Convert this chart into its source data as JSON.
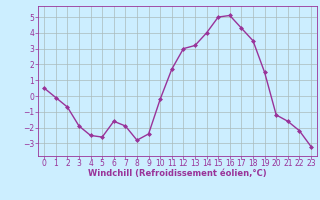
{
  "x": [
    0,
    1,
    2,
    3,
    4,
    5,
    6,
    7,
    8,
    9,
    10,
    11,
    12,
    13,
    14,
    15,
    16,
    17,
    18,
    19,
    20,
    21,
    22,
    23
  ],
  "y": [
    0.5,
    -0.1,
    -0.7,
    -1.9,
    -2.5,
    -2.6,
    -1.6,
    -1.9,
    -2.8,
    -2.4,
    -0.2,
    1.7,
    3.0,
    3.2,
    4.0,
    5.0,
    5.1,
    4.3,
    3.5,
    1.5,
    -1.2,
    -1.6,
    -2.2,
    -3.2
  ],
  "line_color": "#993399",
  "marker": "D",
  "marker_size": 2,
  "bg_color": "#cceeff",
  "grid_color": "#aabbbb",
  "xlabel": "Windchill (Refroidissement éolien,°C)",
  "xlabel_color": "#993399",
  "tick_color": "#993399",
  "label_color": "#993399",
  "ylim": [
    -3.8,
    5.7
  ],
  "xlim": [
    -0.5,
    23.5
  ],
  "yticks": [
    -3,
    -2,
    -1,
    0,
    1,
    2,
    3,
    4,
    5
  ],
  "xticks": [
    0,
    1,
    2,
    3,
    4,
    5,
    6,
    7,
    8,
    9,
    10,
    11,
    12,
    13,
    14,
    15,
    16,
    17,
    18,
    19,
    20,
    21,
    22,
    23
  ],
  "tick_fontsize": 5.5,
  "xlabel_fontsize": 6.0,
  "linewidth": 1.0
}
